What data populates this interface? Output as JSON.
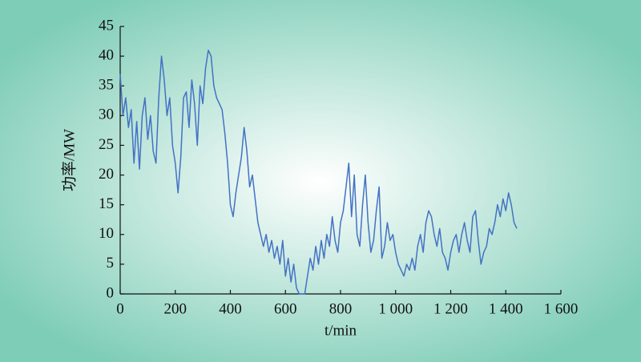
{
  "chart_data": {
    "type": "line",
    "x_label": "t/min",
    "y_label": "功率/MW",
    "x": [
      0,
      10,
      20,
      30,
      40,
      50,
      60,
      70,
      80,
      90,
      100,
      110,
      120,
      130,
      140,
      150,
      160,
      170,
      180,
      190,
      200,
      210,
      220,
      230,
      240,
      250,
      260,
      270,
      280,
      290,
      300,
      310,
      320,
      330,
      340,
      350,
      360,
      370,
      380,
      390,
      400,
      410,
      420,
      430,
      440,
      450,
      460,
      470,
      480,
      490,
      500,
      510,
      520,
      530,
      540,
      550,
      560,
      570,
      580,
      590,
      600,
      610,
      620,
      630,
      640,
      650,
      660,
      670,
      680,
      690,
      700,
      710,
      720,
      730,
      740,
      750,
      760,
      770,
      780,
      790,
      800,
      810,
      820,
      830,
      840,
      850,
      860,
      870,
      880,
      890,
      900,
      910,
      920,
      930,
      940,
      950,
      960,
      970,
      980,
      990,
      1000,
      1010,
      1020,
      1030,
      1040,
      1050,
      1060,
      1070,
      1080,
      1090,
      1100,
      1110,
      1120,
      1130,
      1140,
      1150,
      1160,
      1170,
      1180,
      1190,
      1200,
      1210,
      1220,
      1230,
      1240,
      1250,
      1260,
      1270,
      1280,
      1290,
      1300,
      1310,
      1320,
      1330,
      1340,
      1350,
      1360,
      1370,
      1380,
      1390,
      1400,
      1410,
      1420,
      1430,
      1440
    ],
    "series": [
      {
        "color": "#4472c4",
        "values": [
          37,
          30,
          33,
          28,
          31,
          22,
          29,
          21,
          30,
          33,
          26,
          30,
          24,
          22,
          33,
          40,
          36,
          30,
          33,
          25,
          22,
          17,
          23,
          33,
          34,
          28,
          36,
          32,
          25,
          35,
          32,
          38,
          41,
          40,
          35,
          33,
          32,
          31,
          27,
          22,
          15,
          13,
          17,
          20,
          23,
          28,
          24,
          18,
          20,
          16,
          12,
          10,
          8,
          10,
          7,
          9,
          6,
          8,
          5,
          9,
          3,
          6,
          2,
          5,
          1,
          0,
          0,
          0,
          3,
          6,
          4,
          8,
          5,
          9,
          6,
          10,
          8,
          13,
          9,
          7,
          12,
          14,
          18,
          22,
          13,
          20,
          10,
          8,
          15,
          20,
          12,
          7,
          9,
          14,
          18,
          6,
          8,
          12,
          9,
          10,
          7,
          5,
          4,
          3,
          5,
          4,
          6,
          4,
          8,
          10,
          7,
          12,
          14,
          13,
          10,
          8,
          11,
          7,
          6,
          4,
          7,
          9,
          10,
          7,
          10,
          12,
          9,
          7,
          13,
          14,
          9,
          5,
          7,
          8,
          11,
          10,
          12,
          15,
          13,
          16,
          14,
          17,
          15,
          12,
          11
        ]
      }
    ],
    "xlim": [
      0,
      1600
    ],
    "xticks": [
      0,
      200,
      400,
      600,
      800,
      {
        "value": 1000,
        "label": "1 000"
      },
      {
        "value": 1200,
        "label": "1 200"
      },
      {
        "value": 1400,
        "label": "1 400"
      },
      {
        "value": 1600,
        "label": "1 600"
      }
    ],
    "ylim": [
      0,
      45
    ],
    "yticks": [
      0,
      5,
      10,
      15,
      20,
      25,
      30,
      35,
      40,
      45
    ],
    "grid": false
  }
}
